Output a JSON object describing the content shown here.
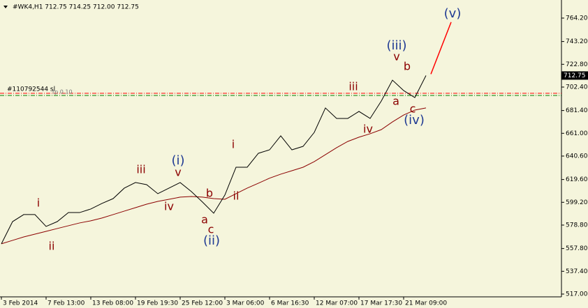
{
  "chart_data": {
    "type": "line",
    "header": "#WK4,H1  712.75 714.25 712.00 712.75",
    "categories": [
      "3 Feb 2014",
      null,
      null,
      null,
      "7 Feb 13:00",
      null,
      null,
      null,
      "13 Feb 08:00",
      null,
      null,
      null,
      "19 Feb 19:30",
      null,
      null,
      null,
      "25 Feb 12:00",
      null,
      null,
      null,
      "3 Mar 06:00",
      null,
      null,
      null,
      "6 Mar 16:30",
      null,
      null,
      null,
      "12 Mar 07:00",
      null,
      null,
      null,
      "17 Mar 17:30",
      null,
      null,
      null,
      "21 Mar 09:00",
      null,
      null
    ],
    "series": [
      {
        "color": "#000000",
        "values": [
          562.0,
          581.9,
          588.2,
          588.2,
          577.6,
          581.9,
          590.0,
          590.0,
          593.2,
          598.2,
          602.5,
          611.9,
          616.9,
          615.0,
          606.9,
          611.9,
          616.9,
          608.8,
          599.4,
          589.4,
          605.7,
          630.6,
          630.6,
          643.1,
          646.2,
          658.7,
          646.2,
          649.3,
          661.8,
          683.7,
          674.3,
          674.3,
          680.6,
          674.3,
          689.9,
          708.6,
          699.3,
          693.0,
          712.75
        ]
      },
      {
        "color": "#8b0000",
        "values": [
          562.0,
          565.1,
          568.2,
          570.7,
          573.2,
          575.7,
          578.2,
          580.7,
          582.6,
          585.1,
          588.2,
          591.3,
          594.4,
          597.5,
          600.0,
          601.9,
          603.8,
          604.4,
          603.8,
          602.5,
          601.9,
          606.9,
          611.9,
          616.3,
          620.8,
          624.4,
          627.5,
          630.6,
          635.6,
          641.9,
          648.1,
          653.7,
          657.5,
          660.6,
          664.3,
          671.2,
          677.4,
          681.8,
          683.7
        ]
      }
    ],
    "ylim": [
      514.5,
      780.4
    ],
    "yticks": [
      {
        "value": 764.2,
        "label": "764.20"
      },
      {
        "value": 743.2,
        "label": "743.20"
      },
      {
        "value": 722.8,
        "label": "722.80"
      },
      {
        "value": 702.4,
        "label": "702.40"
      },
      {
        "value": 681.4,
        "label": "681.40"
      },
      {
        "value": 661.0,
        "label": "661.00"
      },
      {
        "value": 640.6,
        "label": "640.60"
      },
      {
        "value": 619.6,
        "label": "619.60"
      },
      {
        "value": 599.2,
        "label": "599.20"
      },
      {
        "value": 578.8,
        "label": "578.80"
      },
      {
        "value": 557.8,
        "label": "557.80"
      },
      {
        "value": 537.4,
        "label": "537.40"
      },
      {
        "value": 517.0,
        "label": "517.00"
      }
    ],
    "last_price": 712.75,
    "hlines": [
      {
        "value": 696.8,
        "color": "#ff0000"
      },
      {
        "value": 694.9,
        "color": "#008000"
      }
    ],
    "order_label": "#110792544 sl",
    "tp_label": "tp 0.10",
    "projection": {
      "values": [
        714.0,
        760.6
      ],
      "color": "#ff0000"
    },
    "waves": [
      {
        "text": "i",
        "color": "#8b0000"
      },
      {
        "text": "ii",
        "color": "#8b0000"
      },
      {
        "text": "iii",
        "color": "#8b0000"
      },
      {
        "text": "iv",
        "color": "#8b0000"
      },
      {
        "text": "v",
        "color": "#8b0000"
      },
      {
        "text": "(i)",
        "color": "#1f3a93"
      },
      {
        "text": "b",
        "color": "#8b0000"
      },
      {
        "text": "a",
        "color": "#8b0000"
      },
      {
        "text": "c",
        "color": "#8b0000"
      },
      {
        "text": "(ii)",
        "color": "#1f3a93"
      },
      {
        "text": "i",
        "color": "#8b0000"
      },
      {
        "text": "ii",
        "color": "#8b0000"
      },
      {
        "text": "iii",
        "color": "#8b0000"
      },
      {
        "text": "iv",
        "color": "#8b0000"
      },
      {
        "text": "a",
        "color": "#8b0000"
      },
      {
        "text": "v",
        "color": "#8b0000"
      },
      {
        "text": "(iii)",
        "color": "#1f3a93"
      },
      {
        "text": "b",
        "color": "#8b0000"
      },
      {
        "text": "c",
        "color": "#8b0000"
      },
      {
        "text": "(iv)",
        "color": "#1f3a93"
      },
      {
        "text": "(v)",
        "color": "#1f3a93"
      }
    ]
  }
}
